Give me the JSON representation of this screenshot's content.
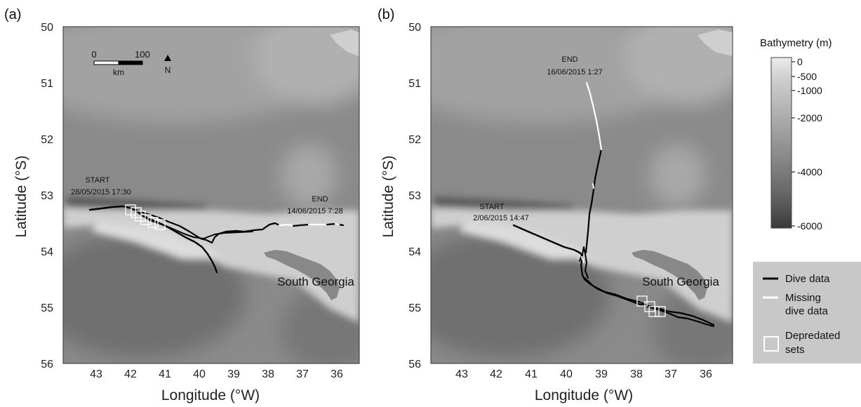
{
  "panels": [
    {
      "label": "(a)",
      "xlabel": "Longitude (°W)",
      "ylabel": "Latitude (°S)",
      "xticks": [
        "43",
        "42",
        "41",
        "40",
        "39",
        "38",
        "37",
        "36"
      ],
      "yticks": [
        "50",
        "51",
        "52",
        "53",
        "54",
        "55",
        "56"
      ],
      "start_label": "START",
      "start_time": "28/05/2015 17:30",
      "end_label": "END",
      "end_time": "14/06/2015 7:28",
      "place_label": "South Georgia",
      "scalebar": {
        "zero": "0",
        "max": "100",
        "unit": "km"
      },
      "north_label": "N"
    },
    {
      "label": "(b)",
      "xlabel": "Longitude (°W)",
      "ylabel": "Latitude (°S)",
      "xticks": [
        "43",
        "42",
        "41",
        "40",
        "39",
        "38",
        "37",
        "36"
      ],
      "yticks": [
        "50",
        "51",
        "52",
        "53",
        "54",
        "55",
        "56"
      ],
      "start_label": "START",
      "start_time": "2/06/2015 14:47",
      "end_label": "END",
      "end_time": "16/06/2015 1:27",
      "place_label": "South Georgia"
    }
  ],
  "bathymetry": {
    "title": "Bathymetry (m)",
    "ticks": [
      "0",
      "-500",
      "-1000",
      "-2000",
      "-4000",
      "-6000"
    ]
  },
  "legend": {
    "dive": "Dive data",
    "missing_line1": "Missing",
    "missing_line2": "dive data",
    "sets_line1": "Depredated",
    "sets_line2": "sets"
  },
  "colors": {
    "dive": "#000000",
    "missing": "#ffffff",
    "sets": "#ffffff",
    "legend_bg": "#c8c8c8"
  }
}
